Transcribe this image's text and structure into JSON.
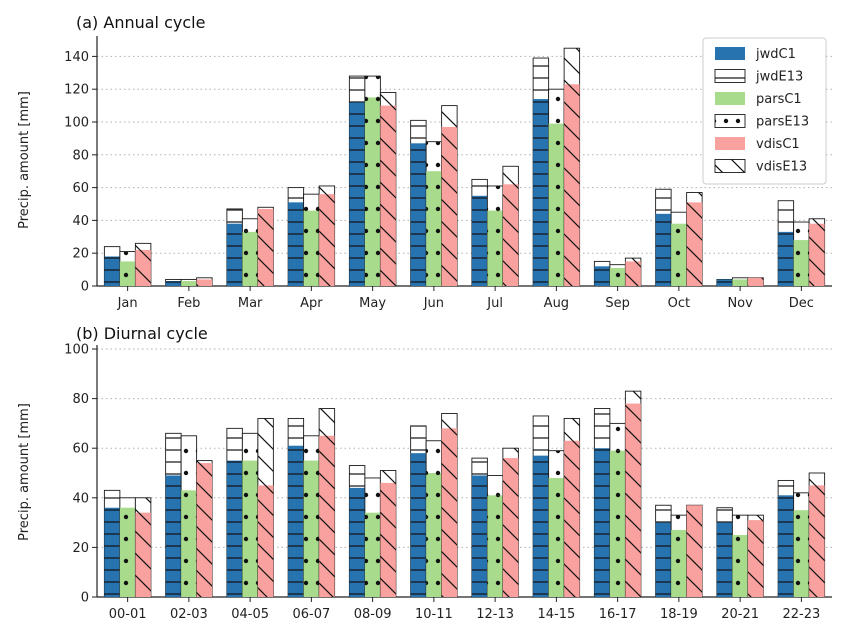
{
  "chart_data": [
    {
      "type": "bar",
      "title": "(a) Annual cycle",
      "ylabel": "Precip. amount [mm]",
      "ylim": [
        0,
        150
      ],
      "yticks": [
        0,
        20,
        40,
        60,
        80,
        100,
        120,
        140
      ],
      "grid": "horizontal dotted",
      "legend_placement": "top-right",
      "categories": [
        "Jan",
        "Feb",
        "Mar",
        "Apr",
        "May",
        "Jun",
        "Jul",
        "Aug",
        "Sep",
        "Oct",
        "Nov",
        "Dec"
      ],
      "groups": [
        {
          "stack": [
            {
              "name": "jwdC1",
              "values": [
                18,
                3,
                38,
                51,
                112,
                87,
                55,
                114,
                12,
                44,
                4,
                33
              ]
            },
            {
              "name": "jwdE13",
              "values": [
                24,
                4,
                47,
                60,
                128,
                101,
                65,
                139,
                15,
                59,
                4,
                52
              ]
            }
          ]
        },
        {
          "stack": [
            {
              "name": "parsC1",
              "values": [
                15,
                3,
                33,
                46,
                115,
                70,
                46,
                99,
                11,
                38,
                4,
                28
              ]
            },
            {
              "name": "parsE13",
              "values": [
                21,
                4,
                41,
                56,
                128,
                88,
                61,
                120,
                13,
                45,
                5,
                39
              ]
            }
          ]
        },
        {
          "stack": [
            {
              "name": "vdisC1",
              "values": [
                22,
                4,
                47,
                56,
                110,
                97,
                62,
                123,
                15,
                51,
                5,
                38
              ]
            },
            {
              "name": "vdisE13",
              "values": [
                26,
                5,
                48,
                61,
                118,
                110,
                73,
                145,
                17,
                57,
                5,
                41
              ]
            }
          ]
        }
      ]
    },
    {
      "type": "bar",
      "title": "(b) Diurnal cycle",
      "ylabel": "Precip. amount [mm]",
      "ylim": [
        0,
        100
      ],
      "yticks": [
        0,
        20,
        40,
        60,
        80,
        100
      ],
      "grid": "horizontal dotted",
      "categories": [
        "00-01",
        "02-03",
        "04-05",
        "06-07",
        "08-09",
        "10-11",
        "12-13",
        "14-15",
        "16-17",
        "18-19",
        "20-21",
        "22-23"
      ],
      "groups": [
        {
          "stack": [
            {
              "name": "jwdC1",
              "values": [
                36,
                49,
                55,
                61,
                44,
                58,
                49,
                57,
                60,
                30,
                30,
                41
              ]
            },
            {
              "name": "jwdE13",
              "values": [
                43,
                66,
                68,
                72,
                53,
                69,
                56,
                73,
                76,
                37,
                36,
                47
              ]
            }
          ]
        },
        {
          "stack": [
            {
              "name": "parsC1",
              "values": [
                36,
                43,
                55,
                55,
                34,
                50,
                41,
                48,
                59,
                27,
                25,
                35
              ]
            },
            {
              "name": "parsE13",
              "values": [
                40,
                65,
                66,
                65,
                48,
                63,
                49,
                59,
                70,
                33,
                33,
                42
              ]
            }
          ]
        },
        {
          "stack": [
            {
              "name": "vdisC1",
              "values": [
                34,
                54,
                45,
                65,
                46,
                68,
                56,
                63,
                78,
                37,
                31,
                45
              ]
            },
            {
              "name": "vdisE13",
              "values": [
                40,
                55,
                72,
                76,
                51,
                74,
                60,
                72,
                83,
                37,
                33,
                50
              ]
            }
          ]
        }
      ]
    }
  ],
  "legend": {
    "entries": [
      {
        "name": "jwdC1",
        "color": "#2673b0",
        "pattern": "hline"
      },
      {
        "name": "jwdE13",
        "color": "#ffffff",
        "pattern": "hline"
      },
      {
        "name": "parsC1",
        "color": "#a8dc8c",
        "pattern": "dot"
      },
      {
        "name": "parsE13",
        "color": "#ffffff",
        "pattern": "dot"
      },
      {
        "name": "vdisC1",
        "color": "#f8a19e",
        "pattern": "diag"
      },
      {
        "name": "vdisE13",
        "color": "#ffffff",
        "pattern": "diag"
      }
    ]
  },
  "colors": {
    "jwdC1": "#2673b0",
    "parsC1": "#a8dc8c",
    "vdisC1": "#f8a19e",
    "outline": "#1a1a1a",
    "grid": "#b0b0b0"
  }
}
